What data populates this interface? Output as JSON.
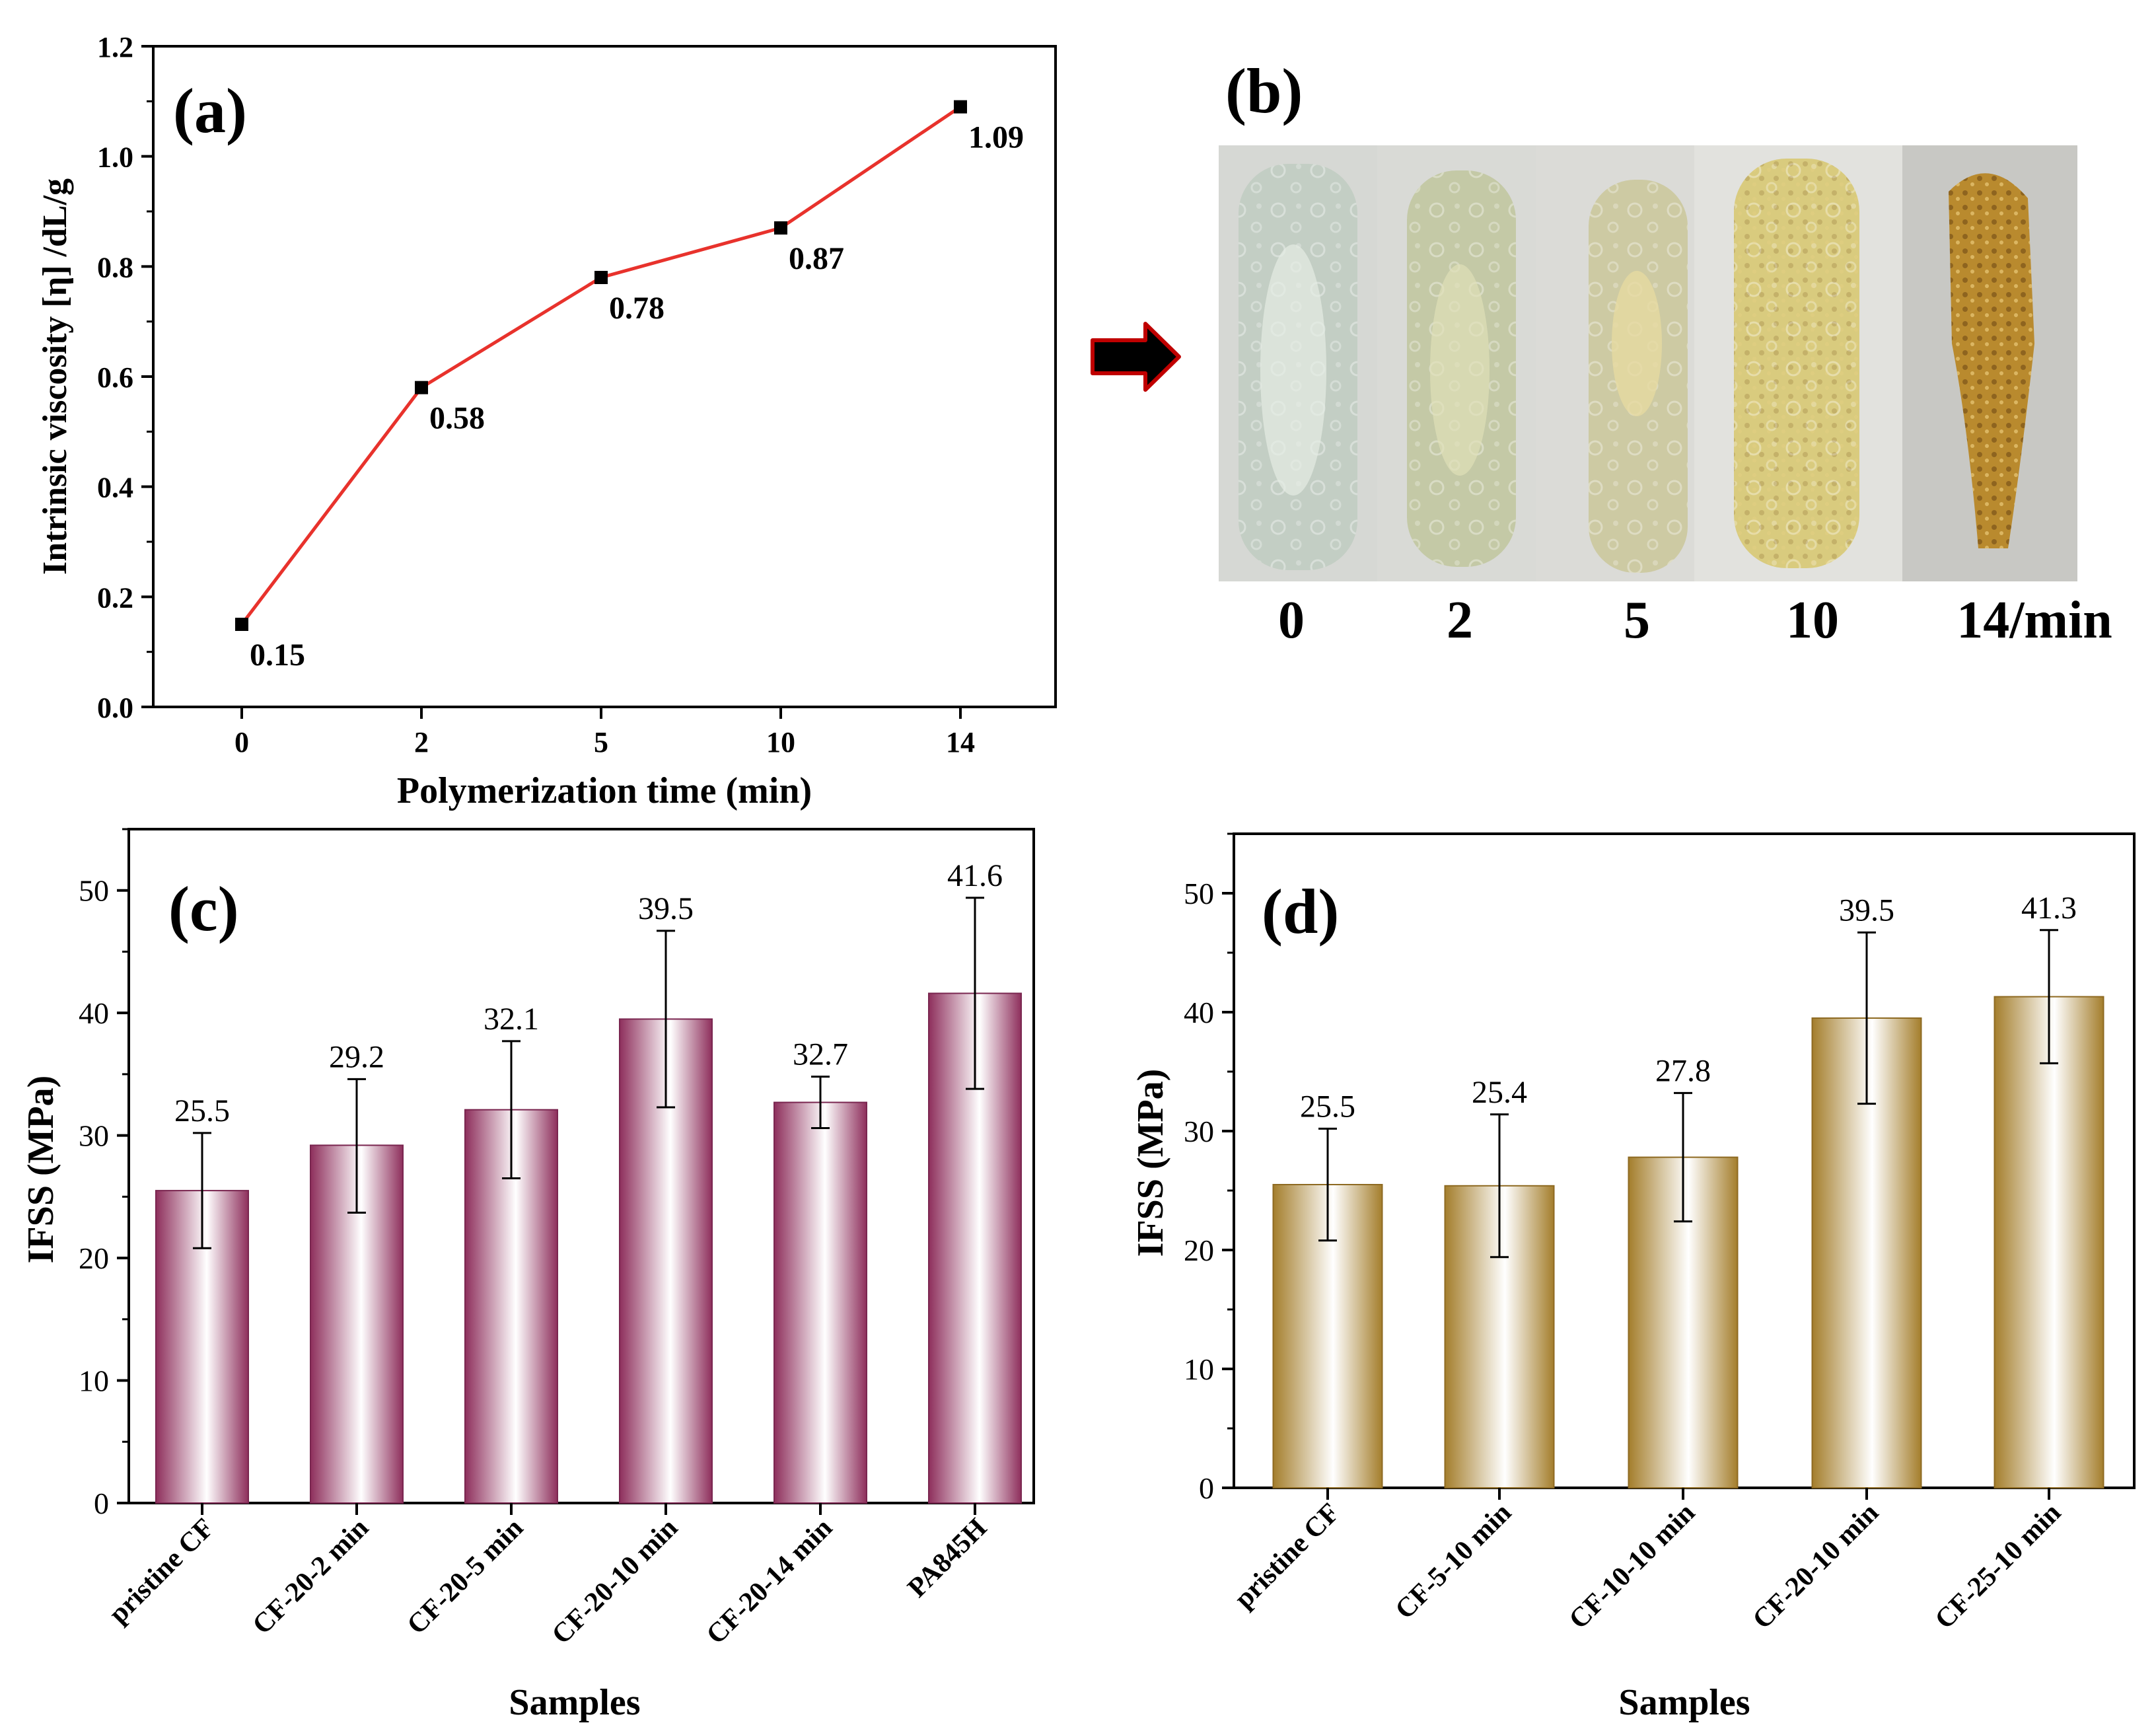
{
  "colors": {
    "line": "#e8322c",
    "marker": "#000000",
    "bar_c": "#8e2f5c",
    "bar_d": "#a47e2c",
    "arrow": "#000000",
    "arrow_edge": "#c00000"
  },
  "chart_data": [
    {
      "panel": "(a)",
      "type": "line",
      "categories": [
        "0",
        "2",
        "5",
        "10",
        "14"
      ],
      "values": [
        0.15,
        0.58,
        0.78,
        0.87,
        1.09
      ],
      "value_labels": [
        "0.15",
        "0.58",
        "0.78",
        "0.87",
        "1.09"
      ],
      "xlabel": "Polymerization time (min)",
      "ylabel": "Intrinsic viscosity [η] /dL/g",
      "ylim": [
        0,
        1.2
      ],
      "yticks": [
        0.0,
        0.2,
        0.4,
        0.6,
        0.8,
        1.0,
        1.2
      ],
      "ytick_labels": [
        "0.0",
        "0.2",
        "0.4",
        "0.6",
        "0.8",
        "1.0",
        "1.2"
      ]
    },
    {
      "panel": "(c)",
      "type": "bar",
      "categories": [
        "pristine CF",
        "CF-20-2 min",
        "CF-20-5 min",
        "CF-20-10 min",
        "CF-20-14 min",
        "PA845H"
      ],
      "values": [
        25.5,
        29.2,
        32.1,
        39.5,
        32.7,
        41.6
      ],
      "value_labels": [
        "25.5",
        "29.2",
        "32.1",
        "39.5",
        "32.7",
        "41.6"
      ],
      "error_low": [
        20.8,
        23.7,
        26.5,
        32.3,
        30.6,
        33.8
      ],
      "error_high": [
        30.2,
        34.6,
        37.7,
        46.7,
        34.8,
        49.4
      ],
      "xlabel": "Samples",
      "ylabel": "IFSS (MPa)",
      "ylim": [
        0,
        55
      ],
      "yticks": [
        0,
        10,
        20,
        30,
        40,
        50
      ],
      "ytick_labels": [
        "0",
        "10",
        "20",
        "30",
        "40",
        "50"
      ]
    },
    {
      "panel": "(d)",
      "type": "bar",
      "categories": [
        "pristine CF",
        "CF-5-10 min",
        "CF-10-10 min",
        "CF-20-10 min",
        "CF-25-10 min"
      ],
      "values": [
        25.5,
        25.4,
        27.8,
        39.5,
        41.3
      ],
      "value_labels": [
        "25.5",
        "25.4",
        "27.8",
        "39.5",
        "41.3"
      ],
      "error_low": [
        20.8,
        19.4,
        22.4,
        32.3,
        35.7
      ],
      "error_high": [
        30.2,
        31.4,
        33.2,
        46.7,
        46.9
      ],
      "xlabel": "Samples",
      "ylabel": "IFSS (MPa)",
      "ylim": [
        0,
        55
      ],
      "yticks": [
        0,
        10,
        20,
        30,
        40,
        50
      ],
      "ytick_labels": [
        "0",
        "10",
        "20",
        "30",
        "40",
        "50"
      ]
    }
  ],
  "photo_panel": {
    "panel": "(b)",
    "sample_labels": [
      "0",
      "2",
      "5",
      "10",
      "14/min"
    ]
  }
}
